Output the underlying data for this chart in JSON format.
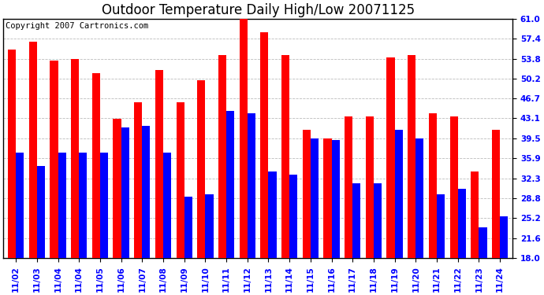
{
  "title": "Outdoor Temperature Daily High/Low 20071125",
  "copyright": "Copyright 2007 Cartronics.com",
  "date_labels": [
    "11/02",
    "11/03",
    "11/04",
    "11/04",
    "11/05",
    "11/06",
    "11/07",
    "11/08",
    "11/09",
    "11/10",
    "11/11",
    "11/12",
    "11/13",
    "11/14",
    "11/15",
    "11/16",
    "11/17",
    "11/18",
    "11/19",
    "11/20",
    "11/21",
    "11/22",
    "11/23",
    "11/24"
  ],
  "highs": [
    55.5,
    56.8,
    53.5,
    53.8,
    51.2,
    43.0,
    46.0,
    51.8,
    46.0,
    50.0,
    54.5,
    61.0,
    58.5,
    54.5,
    41.0,
    39.5,
    43.5,
    43.5,
    54.0,
    54.5,
    44.0,
    43.5,
    33.5,
    41.0
  ],
  "lows": [
    37.0,
    34.5,
    37.0,
    37.0,
    37.0,
    41.5,
    41.8,
    37.0,
    29.0,
    29.5,
    44.5,
    44.0,
    33.5,
    33.0,
    39.5,
    39.2,
    31.5,
    31.5,
    41.0,
    39.5,
    29.5,
    30.5,
    23.5,
    25.5
  ],
  "high_color": "#ff0000",
  "low_color": "#0000ff",
  "bg_color": "#ffffff",
  "grid_color": "#bbbbbb",
  "ylim_min": 18.0,
  "ylim_max": 61.0,
  "yticks": [
    18.0,
    21.6,
    25.2,
    28.8,
    32.3,
    35.9,
    39.5,
    43.1,
    46.7,
    50.2,
    53.8,
    57.4,
    61.0
  ],
  "title_fontsize": 12,
  "copyright_fontsize": 7.5,
  "tick_fontsize": 7.5,
  "bar_width": 0.38
}
